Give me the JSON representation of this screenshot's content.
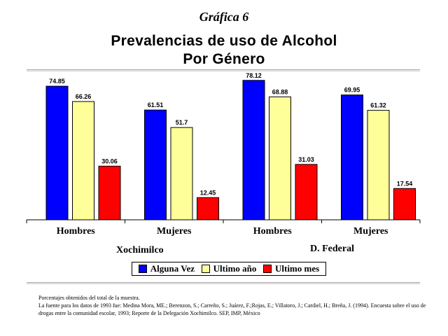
{
  "caption": "Gráfica 6",
  "title_line1": "Prevalencias de uso de Alcohol",
  "title_line2": "Por Género",
  "chart_data": {
    "type": "bar",
    "categories": [
      "Hombres",
      "Mujeres",
      "Hombres",
      "Mujeres"
    ],
    "groups": [
      "Xochimilco",
      "D. Federal"
    ],
    "series": [
      {
        "name": "Alguna Vez",
        "values": [
          74.85,
          61.51,
          78.12,
          69.95
        ],
        "color": "#0000ff"
      },
      {
        "name": "Ultimo año",
        "values": [
          66.26,
          51.7,
          68.88,
          61.32
        ],
        "color": "#ffff99"
      },
      {
        "name": "Ultimo mes",
        "values": [
          30.06,
          12.45,
          31.03,
          17.54
        ],
        "color": "#ff0000"
      }
    ],
    "ylim": [
      0,
      80
    ],
    "data_labels": true,
    "grid": false,
    "legend": "bottom"
  },
  "footnote": {
    "line1": "Porcentajes obtenidos del total de la muestra.",
    "line2": "La fuente para los datos de 1993 fue: Medina Mora, ME.; Berenzon, S.; Carreño, S.; Juárez, F.;Rojas, E.; Villatoro, J.; Cardiel, H.; Breña, J. (1994). Encuesta sobre el uso de drogas entre la comunidad escolar, 1993; Reporte de la Delegación Xochimilco. SEP, IMP, México"
  }
}
